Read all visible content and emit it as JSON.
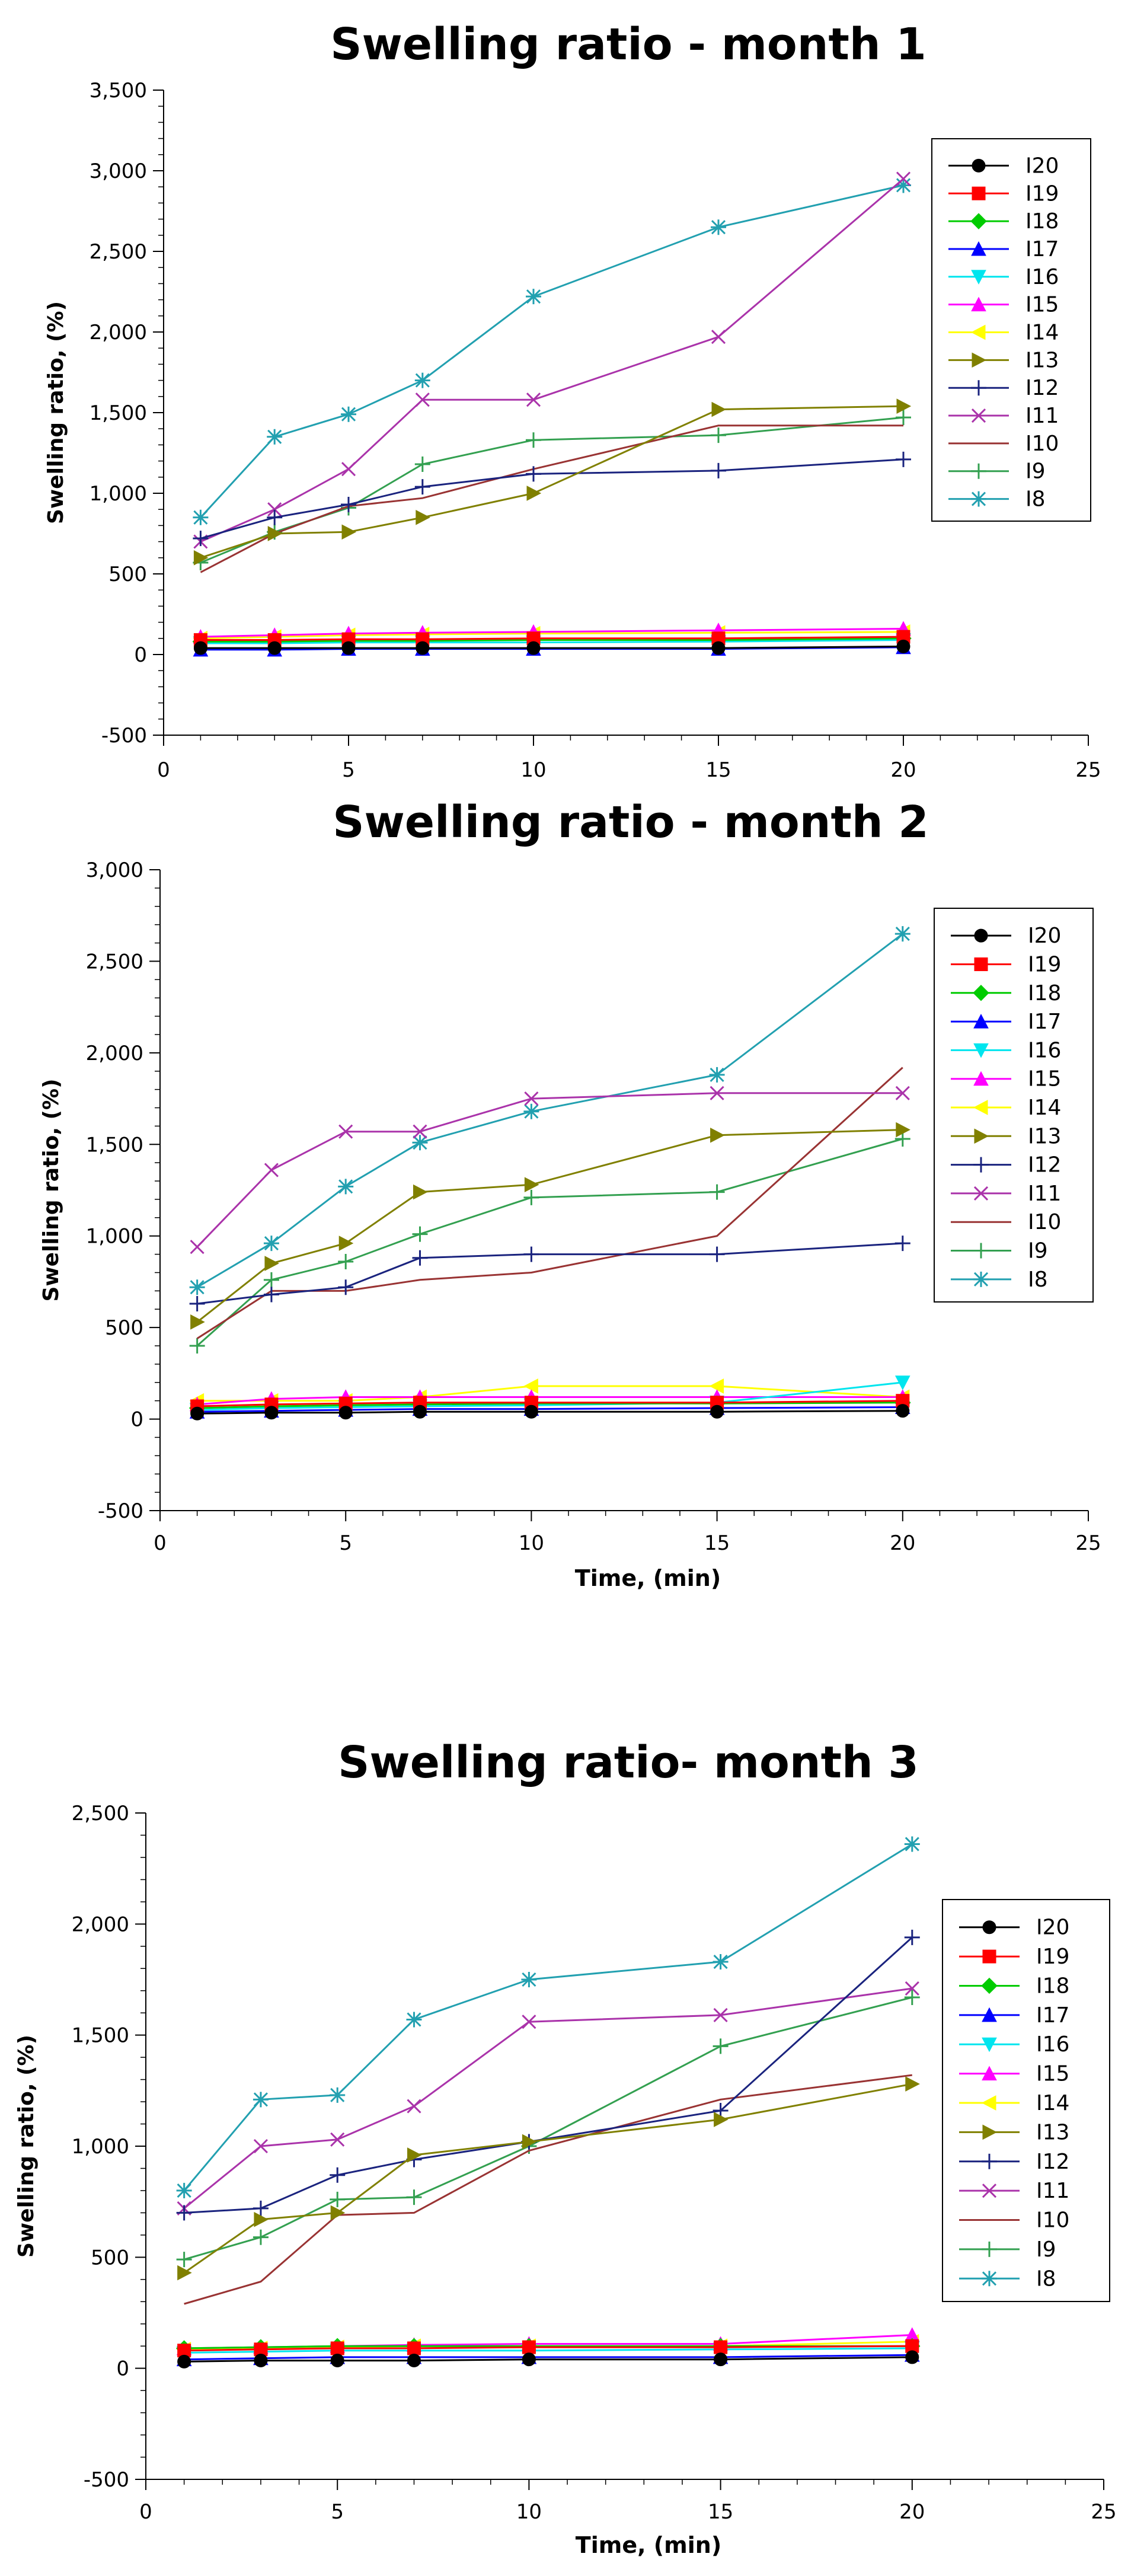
{
  "chart_data": [
    {
      "type": "line",
      "title": "Swelling ratio - month 1",
      "xlabel": "",
      "ylabel": "Swelling ratio, (%)",
      "xlim": [
        0,
        25
      ],
      "ylim": [
        -500,
        3500
      ],
      "xticks": [
        0,
        5,
        10,
        15,
        20,
        25
      ],
      "yticks": [
        -500,
        0,
        500,
        1000,
        1500,
        2000,
        2500,
        3000,
        3500
      ],
      "ytick_labels": [
        "-500",
        "0",
        "500",
        "1,000",
        "1,500",
        "2,000",
        "2,500",
        "3,000",
        "3,500"
      ],
      "legend_position": "top-right",
      "x": [
        1,
        3,
        5,
        7,
        10,
        15,
        20
      ],
      "series": [
        {
          "name": "I20",
          "color": "#000000",
          "marker": "circle",
          "values": [
            40,
            40,
            40,
            40,
            40,
            40,
            50
          ]
        },
        {
          "name": "I19",
          "color": "#ff0000",
          "marker": "square",
          "values": [
            90,
            90,
            95,
            95,
            100,
            100,
            110
          ]
        },
        {
          "name": "I18",
          "color": "#00cc00",
          "marker": "diamond",
          "values": [
            80,
            80,
            85,
            85,
            90,
            90,
            100
          ]
        },
        {
          "name": "I17",
          "color": "#0000ff",
          "marker": "triangle-up",
          "values": [
            30,
            30,
            35,
            35,
            35,
            35,
            45
          ]
        },
        {
          "name": "I16",
          "color": "#00e5ee",
          "marker": "triangle-down",
          "values": [
            70,
            70,
            75,
            75,
            75,
            80,
            90
          ]
        },
        {
          "name": "I15",
          "color": "#ff00ff",
          "marker": "triangle-up",
          "values": [
            110,
            120,
            130,
            135,
            140,
            150,
            160
          ]
        },
        {
          "name": "I14",
          "color": "#ffff00",
          "marker": "triangle-left",
          "values": [
            100,
            110,
            120,
            125,
            130,
            135,
            140
          ]
        },
        {
          "name": "I13",
          "color": "#808000",
          "marker": "triangle-right",
          "values": [
            600,
            750,
            760,
            850,
            1000,
            1520,
            1540
          ]
        },
        {
          "name": "I12",
          "color": "#1a237e",
          "marker": "plus",
          "values": [
            720,
            850,
            930,
            1040,
            1120,
            1140,
            1210
          ]
        },
        {
          "name": "I11",
          "color": "#aa33aa",
          "marker": "x",
          "values": [
            700,
            900,
            1150,
            1580,
            1580,
            1970,
            2950
          ]
        },
        {
          "name": "I10",
          "color": "#993333",
          "marker": "none",
          "values": [
            510,
            750,
            920,
            970,
            1150,
            1420,
            1420
          ]
        },
        {
          "name": "I9",
          "color": "#33a050",
          "marker": "plus",
          "values": [
            570,
            760,
            910,
            1180,
            1330,
            1360,
            1470
          ]
        },
        {
          "name": "I8",
          "color": "#22a0b0",
          "marker": "star",
          "values": [
            850,
            1350,
            1490,
            1700,
            2220,
            2650,
            2910
          ]
        }
      ]
    },
    {
      "type": "line",
      "title": "Swelling ratio - month 2",
      "xlabel": "Time, (min)",
      "ylabel": "Swelling ratio, (%)",
      "xlim": [
        0,
        25
      ],
      "ylim": [
        -500,
        3000
      ],
      "xticks": [
        0,
        5,
        10,
        15,
        20,
        25
      ],
      "yticks": [
        -500,
        0,
        500,
        1000,
        1500,
        2000,
        2500,
        3000
      ],
      "ytick_labels": [
        "-500",
        "0",
        "500",
        "1,000",
        "1,500",
        "2,000",
        "2,500",
        "3,000"
      ],
      "legend_position": "top-right",
      "x": [
        1,
        3,
        5,
        7,
        10,
        15,
        20
      ],
      "series": [
        {
          "name": "I20",
          "color": "#000000",
          "marker": "circle",
          "values": [
            30,
            35,
            35,
            40,
            40,
            40,
            45
          ]
        },
        {
          "name": "I19",
          "color": "#ff0000",
          "marker": "square",
          "values": [
            70,
            80,
            85,
            90,
            90,
            90,
            100
          ]
        },
        {
          "name": "I18",
          "color": "#00cc00",
          "marker": "diamond",
          "values": [
            60,
            70,
            75,
            80,
            85,
            85,
            90
          ]
        },
        {
          "name": "I17",
          "color": "#0000ff",
          "marker": "triangle-up",
          "values": [
            40,
            45,
            50,
            55,
            55,
            60,
            65
          ]
        },
        {
          "name": "I16",
          "color": "#00e5ee",
          "marker": "triangle-down",
          "values": [
            50,
            60,
            65,
            70,
            75,
            90,
            200
          ]
        },
        {
          "name": "I15",
          "color": "#ff00ff",
          "marker": "triangle-up",
          "values": [
            80,
            110,
            120,
            120,
            120,
            120,
            120
          ]
        },
        {
          "name": "I14",
          "color": "#ffff00",
          "marker": "triangle-left",
          "values": [
            100,
            100,
            100,
            120,
            180,
            180,
            120
          ]
        },
        {
          "name": "I13",
          "color": "#808000",
          "marker": "triangle-right",
          "values": [
            530,
            850,
            960,
            1240,
            1280,
            1550,
            1580
          ]
        },
        {
          "name": "I12",
          "color": "#1a237e",
          "marker": "plus",
          "values": [
            630,
            680,
            720,
            880,
            900,
            900,
            960
          ]
        },
        {
          "name": "I11",
          "color": "#aa33aa",
          "marker": "x",
          "values": [
            940,
            1360,
            1570,
            1570,
            1750,
            1780,
            1780
          ]
        },
        {
          "name": "I10",
          "color": "#993333",
          "marker": "none",
          "values": [
            440,
            700,
            700,
            760,
            800,
            1000,
            1920
          ]
        },
        {
          "name": "I9",
          "color": "#33a050",
          "marker": "plus",
          "values": [
            400,
            760,
            860,
            1010,
            1210,
            1240,
            1530
          ]
        },
        {
          "name": "I8",
          "color": "#22a0b0",
          "marker": "star",
          "values": [
            720,
            960,
            1270,
            1510,
            1680,
            1880,
            2650
          ]
        }
      ]
    },
    {
      "type": "line",
      "title": "Swelling ratio- month 3",
      "xlabel": "Time, (min)",
      "ylabel": "Swelling ratio, (%)",
      "xlim": [
        0,
        25
      ],
      "ylim": [
        -500,
        2500
      ],
      "xticks": [
        0,
        5,
        10,
        15,
        20,
        25
      ],
      "yticks": [
        -500,
        0,
        500,
        1000,
        1500,
        2000,
        2500
      ],
      "ytick_labels": [
        "-500",
        "0",
        "500",
        "1,000",
        "1,500",
        "2,000",
        "2,500"
      ],
      "legend_position": "top-right",
      "x": [
        1,
        3,
        5,
        7,
        10,
        15,
        20
      ],
      "series": [
        {
          "name": "I20",
          "color": "#000000",
          "marker": "circle",
          "values": [
            30,
            35,
            35,
            35,
            40,
            40,
            50
          ]
        },
        {
          "name": "I19",
          "color": "#ff0000",
          "marker": "square",
          "values": [
            80,
            85,
            90,
            90,
            95,
            95,
            100
          ]
        },
        {
          "name": "I18",
          "color": "#00cc00",
          "marker": "diamond",
          "values": [
            90,
            95,
            100,
            100,
            100,
            100,
            100
          ]
        },
        {
          "name": "I17",
          "color": "#0000ff",
          "marker": "triangle-up",
          "values": [
            40,
            45,
            50,
            50,
            50,
            50,
            60
          ]
        },
        {
          "name": "I16",
          "color": "#00e5ee",
          "marker": "triangle-down",
          "values": [
            70,
            75,
            80,
            80,
            80,
            85,
            90
          ]
        },
        {
          "name": "I15",
          "color": "#ff00ff",
          "marker": "triangle-up",
          "values": [
            90,
            95,
            100,
            105,
            110,
            110,
            150
          ]
        },
        {
          "name": "I14",
          "color": "#ffff00",
          "marker": "triangle-left",
          "values": [
            85,
            90,
            95,
            100,
            100,
            100,
            120
          ]
        },
        {
          "name": "I13",
          "color": "#808000",
          "marker": "triangle-right",
          "values": [
            430,
            670,
            700,
            960,
            1020,
            1120,
            1280
          ]
        },
        {
          "name": "I12",
          "color": "#1a237e",
          "marker": "plus",
          "values": [
            700,
            720,
            870,
            940,
            1020,
            1160,
            1940
          ]
        },
        {
          "name": "I11",
          "color": "#aa33aa",
          "marker": "x",
          "values": [
            720,
            1000,
            1030,
            1180,
            1560,
            1590,
            1710
          ]
        },
        {
          "name": "I10",
          "color": "#993333",
          "marker": "none",
          "values": [
            290,
            390,
            690,
            700,
            980,
            1210,
            1320
          ]
        },
        {
          "name": "I9",
          "color": "#33a050",
          "marker": "plus",
          "values": [
            490,
            590,
            760,
            770,
            1000,
            1450,
            1670
          ]
        },
        {
          "name": "I8",
          "color": "#22a0b0",
          "marker": "star",
          "values": [
            800,
            1210,
            1230,
            1570,
            1750,
            1830,
            2360
          ]
        }
      ]
    }
  ]
}
